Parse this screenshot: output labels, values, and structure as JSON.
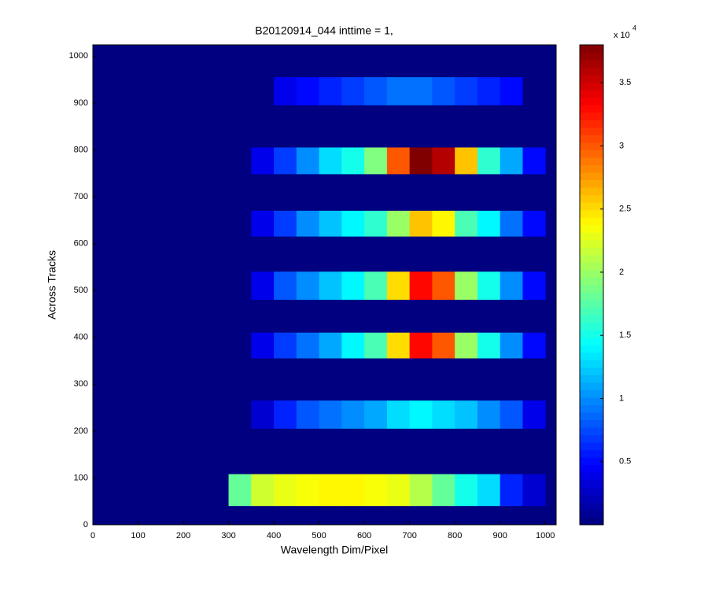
{
  "chart_data": {
    "type": "heatmap",
    "title": "B20120914_044 inttime = 1,",
    "xlabel": "Wavelength Dim/Pixel",
    "ylabel": "Across Tracks",
    "xlim": [
      0,
      1024
    ],
    "ylim": [
      0,
      1024
    ],
    "xticks": [
      0,
      100,
      200,
      300,
      400,
      500,
      600,
      700,
      800,
      900,
      1000
    ],
    "yticks": [
      0,
      100,
      200,
      300,
      400,
      500,
      600,
      700,
      800,
      900,
      1000
    ],
    "colormap": "jet",
    "clim": [
      0,
      38000
    ],
    "background": 0,
    "colorbar_ticks": [
      {
        "value": 5000,
        "label": "0.5"
      },
      {
        "value": 10000,
        "label": "1"
      },
      {
        "value": 15000,
        "label": "1.5"
      },
      {
        "value": 20000,
        "label": "2"
      },
      {
        "value": 25000,
        "label": "2.5"
      },
      {
        "value": 30000,
        "label": "3"
      },
      {
        "value": 35000,
        "label": "3.5"
      }
    ],
    "colorbar_multiplier": "x 10",
    "colorbar_exponent": "4",
    "x_edges": [
      300,
      350,
      400,
      450,
      500,
      550,
      600,
      650,
      700,
      750,
      800,
      850,
      900,
      950,
      1000
    ],
    "stripes": [
      {
        "y0": 40,
        "y1": 108,
        "values": [
          18000,
          22000,
          23000,
          23500,
          24000,
          24000,
          23500,
          23000,
          21000,
          18000,
          15000,
          13000,
          6000,
          3000
        ]
      },
      {
        "y0": 205,
        "y1": 265,
        "values": [
          0,
          3000,
          6000,
          8000,
          9000,
          10000,
          11000,
          13000,
          14000,
          13000,
          12000,
          10000,
          8000,
          4000
        ]
      },
      {
        "y0": 355,
        "y1": 410,
        "values": [
          0,
          4000,
          7000,
          9000,
          11000,
          14000,
          17000,
          25000,
          33000,
          30000,
          20000,
          15000,
          10000,
          5000
        ]
      },
      {
        "y0": 480,
        "y1": 540,
        "values": [
          0,
          4000,
          8000,
          10000,
          12000,
          14000,
          17000,
          25000,
          33000,
          30000,
          20000,
          15000,
          10000,
          5000
        ]
      },
      {
        "y0": 615,
        "y1": 670,
        "values": [
          0,
          4000,
          7000,
          10000,
          12000,
          14000,
          16000,
          20000,
          26000,
          24000,
          17000,
          14000,
          9000,
          5000
        ]
      },
      {
        "y0": 748,
        "y1": 805,
        "values": [
          0,
          4000,
          7000,
          10000,
          13000,
          15000,
          19000,
          30000,
          38000,
          36000,
          26000,
          16000,
          11000,
          5000
        ]
      },
      {
        "y0": 895,
        "y1": 955,
        "values": [
          0,
          0,
          4000,
          5000,
          6000,
          7000,
          8000,
          9000,
          9000,
          8000,
          7000,
          6000,
          5000,
          0
        ]
      }
    ]
  }
}
